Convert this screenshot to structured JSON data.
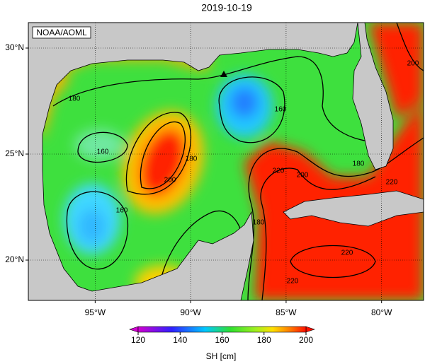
{
  "title": "2019-10-19",
  "watermark": "NOAA/AOML",
  "map": {
    "lonlim": [
      -98.5,
      -77.8
    ],
    "latlim": [
      18.1,
      31.2
    ],
    "grid": true,
    "lon_ticks": [
      {
        "value": -95,
        "label": "95°W"
      },
      {
        "value": -90,
        "label": "90°W"
      },
      {
        "value": -85,
        "label": "85°W"
      },
      {
        "value": -80,
        "label": "80°W"
      }
    ],
    "lat_ticks": [
      {
        "value": 30,
        "label": "30°N"
      },
      {
        "value": 25,
        "label": "25°N"
      },
      {
        "value": 20,
        "label": "20°N"
      }
    ]
  },
  "colorbar": {
    "label": "SH [cm]",
    "lim": [
      120,
      200
    ],
    "ticks": [
      120,
      140,
      160,
      180,
      200
    ]
  },
  "contour_labels": [
    180,
    160,
    160,
    200,
    180,
    160,
    180,
    220,
    200,
    180,
    200,
    220,
    220,
    220
  ]
}
